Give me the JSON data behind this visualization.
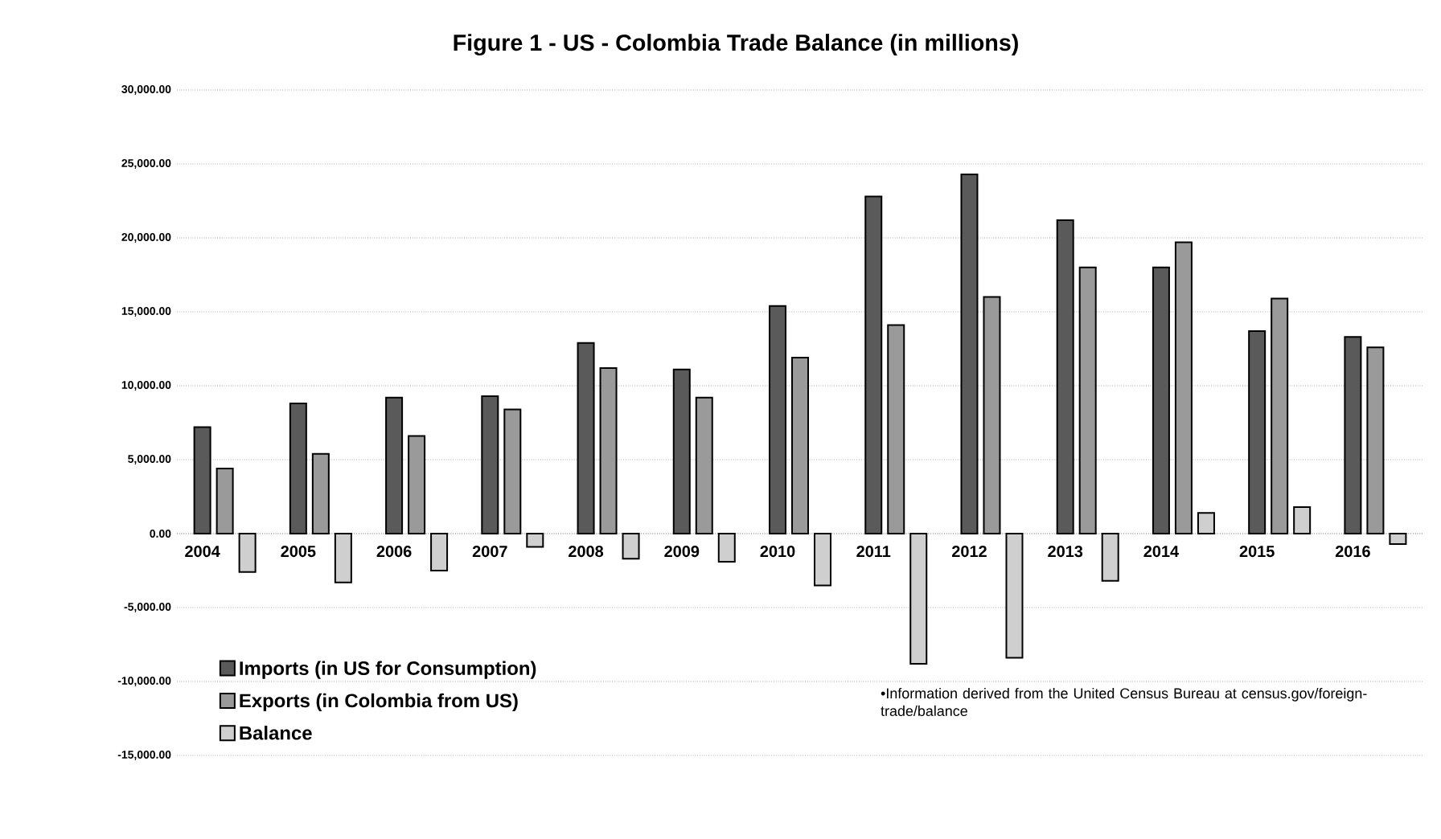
{
  "chart_data": {
    "type": "bar",
    "title": "Figure 1 -  US - Colombia Trade Balance (in millions)",
    "categories": [
      "2004",
      "2005",
      "2006",
      "2007",
      "2008",
      "2009",
      "2010",
      "2011",
      "2012",
      "2013",
      "2014",
      "2015",
      "2016"
    ],
    "series": [
      {
        "name": "Imports (in US for Consumption)",
        "color": "#5a5a5a",
        "values": [
          7200,
          8800,
          9200,
          9300,
          12900,
          11100,
          15400,
          22800,
          24300,
          21200,
          18000,
          13700,
          13300
        ]
      },
      {
        "name": "Exports (in Colombia from US)",
        "color": "#9a9a9a",
        "values": [
          4400,
          5400,
          6600,
          8400,
          11200,
          9200,
          11900,
          14100,
          16000,
          18000,
          19700,
          15900,
          12600
        ]
      },
      {
        "name": "Balance",
        "color": "#cfcfcf",
        "values": [
          -2600,
          -3300,
          -2500,
          -900,
          -1700,
          -1900,
          -3500,
          -8800,
          -8400,
          -3200,
          1400,
          1800,
          -700
        ]
      }
    ],
    "ylim": [
      -15000,
      30000
    ],
    "yticks": [
      {
        "value": -15000,
        "label": "-15,000.00"
      },
      {
        "value": -10000,
        "label": "-10,000.00"
      },
      {
        "value": -5000,
        "label": "-5,000.00"
      },
      {
        "value": 0,
        "label": "0.00"
      },
      {
        "value": 5000,
        "label": "5,000.00"
      },
      {
        "value": 10000,
        "label": "10,000.00"
      },
      {
        "value": 15000,
        "label": "15,000.00"
      },
      {
        "value": 20000,
        "label": "20,000.00"
      },
      {
        "value": 25000,
        "label": "25,000.00"
      },
      {
        "value": 30000,
        "label": "30,000.00"
      }
    ],
    "grid": "y",
    "legend": "bottom left",
    "annotations": [
      "•Information derived from the United Census Bureau at census.gov/foreign-trade/balance"
    ]
  }
}
